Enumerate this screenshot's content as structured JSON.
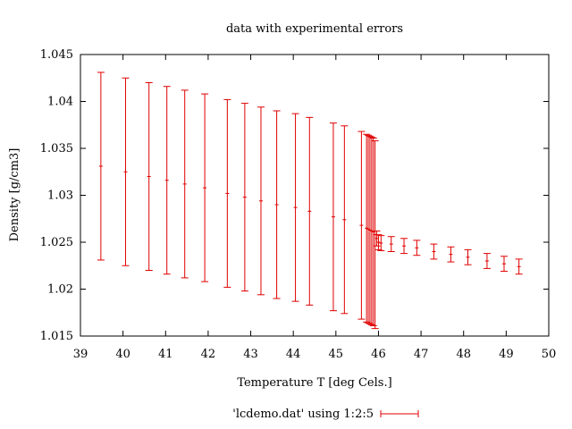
{
  "chart_data": {
    "type": "scatter",
    "title": "data with experimental errors",
    "xlabel": "Temperature T  [deg Cels.]",
    "ylabel": "Density [g/cm3]",
    "xlim": [
      39,
      50
    ],
    "ylim": [
      1.015,
      1.045
    ],
    "xticks": [
      "39",
      "40",
      "41",
      "42",
      "43",
      "44",
      "45",
      "46",
      "47",
      "48",
      "49",
      "50"
    ],
    "yticks": [
      "1.015",
      "1.02",
      "1.025",
      "1.03",
      "1.035",
      "1.04",
      "1.045"
    ],
    "legend": {
      "position": "bottom",
      "label": "'lcdemo.dat' using 1:2:5"
    },
    "grid": false,
    "color": "#e00000",
    "series": [
      {
        "name": "'lcdemo.dat' using 1:2:5",
        "x": [
          39.48,
          40.06,
          40.61,
          41.03,
          41.45,
          41.92,
          42.45,
          42.86,
          43.24,
          43.61,
          44.05,
          44.38,
          44.94,
          45.2,
          45.6,
          45.72,
          45.76,
          45.8,
          45.84,
          45.88,
          45.92,
          45.96,
          46.0,
          46.06,
          46.3,
          46.6,
          46.9,
          47.3,
          47.7,
          48.1,
          48.55,
          48.95,
          49.3
        ],
        "y": [
          1.0331,
          1.0325,
          1.032,
          1.0316,
          1.0312,
          1.0308,
          1.0302,
          1.0298,
          1.0294,
          1.029,
          1.0287,
          1.0283,
          1.0277,
          1.0274,
          1.0268,
          1.0265,
          1.0264,
          1.0263,
          1.0262,
          1.0261,
          1.0258,
          1.0254,
          1.025,
          1.0249,
          1.0248,
          1.0246,
          1.0244,
          1.024,
          1.0237,
          1.0234,
          1.023,
          1.0227,
          1.0224
        ],
        "yerr": [
          0.01,
          0.01,
          0.01,
          0.01,
          0.01,
          0.01,
          0.01,
          0.01,
          0.01,
          0.01,
          0.01,
          0.01,
          0.01,
          0.01,
          0.01,
          0.01,
          0.01,
          0.01,
          0.01,
          0.01,
          0.01,
          0.0008,
          0.0008,
          0.0008,
          0.0008,
          0.0008,
          0.0008,
          0.0008,
          0.0008,
          0.0008,
          0.0008,
          0.0008,
          0.0008
        ]
      }
    ]
  }
}
